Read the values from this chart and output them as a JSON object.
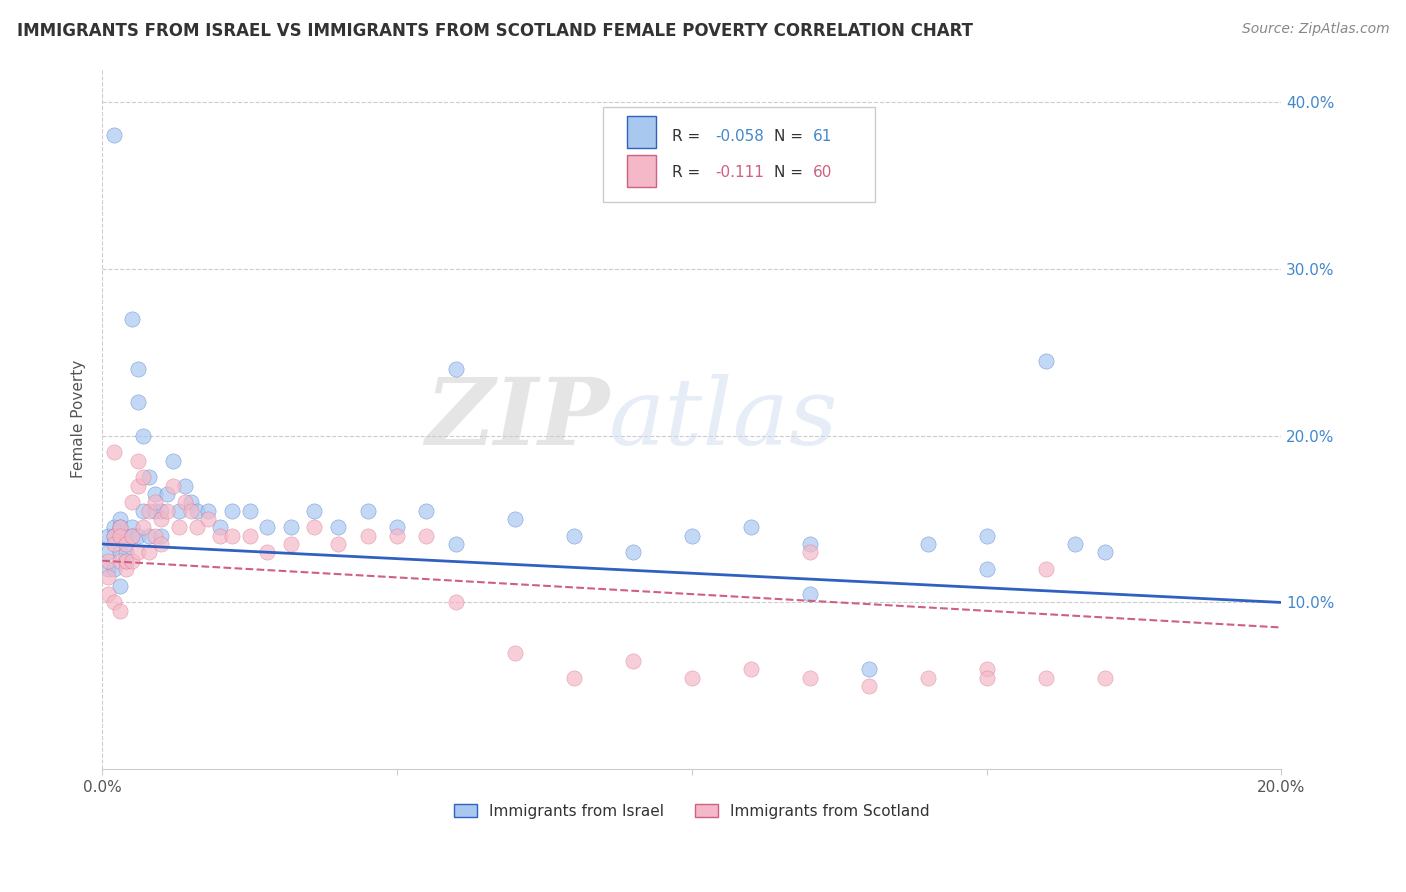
{
  "title": "IMMIGRANTS FROM ISRAEL VS IMMIGRANTS FROM SCOTLAND FEMALE POVERTY CORRELATION CHART",
  "source": "Source: ZipAtlas.com",
  "ylabel": "Female Poverty",
  "xlim": [
    0.0,
    0.2
  ],
  "ylim": [
    0.0,
    0.42
  ],
  "color_israel": "#a8c8f0",
  "color_scotland": "#f5b8c8",
  "line_color_israel": "#3060c0",
  "line_color_scotland": "#d06080",
  "watermark_zip": "ZIP",
  "watermark_atlas": "atlas",
  "legend_R1": "-0.058",
  "legend_N1": "61",
  "legend_R2": "-0.111",
  "legend_N2": "60",
  "israel_x": [
    0.001,
    0.001,
    0.001,
    0.002,
    0.002,
    0.002,
    0.002,
    0.003,
    0.003,
    0.003,
    0.003,
    0.004,
    0.004,
    0.004,
    0.005,
    0.005,
    0.005,
    0.006,
    0.006,
    0.006,
    0.007,
    0.007,
    0.008,
    0.008,
    0.009,
    0.009,
    0.01,
    0.01,
    0.011,
    0.012,
    0.013,
    0.014,
    0.015,
    0.016,
    0.018,
    0.02,
    0.022,
    0.025,
    0.028,
    0.032,
    0.036,
    0.04,
    0.045,
    0.05,
    0.055,
    0.06,
    0.07,
    0.08,
    0.09,
    0.1,
    0.11,
    0.12,
    0.13,
    0.14,
    0.15,
    0.16,
    0.17,
    0.15,
    0.06,
    0.12,
    0.165
  ],
  "israel_y": [
    0.13,
    0.14,
    0.12,
    0.145,
    0.38,
    0.14,
    0.12,
    0.15,
    0.13,
    0.145,
    0.11,
    0.125,
    0.14,
    0.13,
    0.27,
    0.145,
    0.14,
    0.22,
    0.24,
    0.14,
    0.2,
    0.155,
    0.175,
    0.14,
    0.165,
    0.155,
    0.14,
    0.155,
    0.165,
    0.185,
    0.155,
    0.17,
    0.16,
    0.155,
    0.155,
    0.145,
    0.155,
    0.155,
    0.145,
    0.145,
    0.155,
    0.145,
    0.155,
    0.145,
    0.155,
    0.135,
    0.15,
    0.14,
    0.13,
    0.14,
    0.145,
    0.135,
    0.06,
    0.135,
    0.14,
    0.245,
    0.13,
    0.12,
    0.24,
    0.105,
    0.135
  ],
  "scotland_x": [
    0.001,
    0.001,
    0.001,
    0.002,
    0.002,
    0.002,
    0.002,
    0.003,
    0.003,
    0.003,
    0.003,
    0.004,
    0.004,
    0.004,
    0.005,
    0.005,
    0.005,
    0.006,
    0.006,
    0.006,
    0.007,
    0.007,
    0.008,
    0.008,
    0.009,
    0.009,
    0.01,
    0.01,
    0.011,
    0.012,
    0.013,
    0.014,
    0.015,
    0.016,
    0.018,
    0.02,
    0.022,
    0.025,
    0.028,
    0.032,
    0.036,
    0.04,
    0.045,
    0.05,
    0.055,
    0.06,
    0.07,
    0.08,
    0.09,
    0.1,
    0.11,
    0.12,
    0.13,
    0.14,
    0.15,
    0.16,
    0.17,
    0.15,
    0.12,
    0.16
  ],
  "scotland_y": [
    0.125,
    0.115,
    0.105,
    0.14,
    0.19,
    0.135,
    0.1,
    0.145,
    0.125,
    0.14,
    0.095,
    0.12,
    0.135,
    0.125,
    0.14,
    0.16,
    0.125,
    0.185,
    0.17,
    0.13,
    0.175,
    0.145,
    0.155,
    0.13,
    0.16,
    0.14,
    0.135,
    0.15,
    0.155,
    0.17,
    0.145,
    0.16,
    0.155,
    0.145,
    0.15,
    0.14,
    0.14,
    0.14,
    0.13,
    0.135,
    0.145,
    0.135,
    0.14,
    0.14,
    0.14,
    0.1,
    0.07,
    0.055,
    0.065,
    0.055,
    0.06,
    0.055,
    0.05,
    0.055,
    0.06,
    0.055,
    0.055,
    0.055,
    0.13,
    0.12
  ]
}
